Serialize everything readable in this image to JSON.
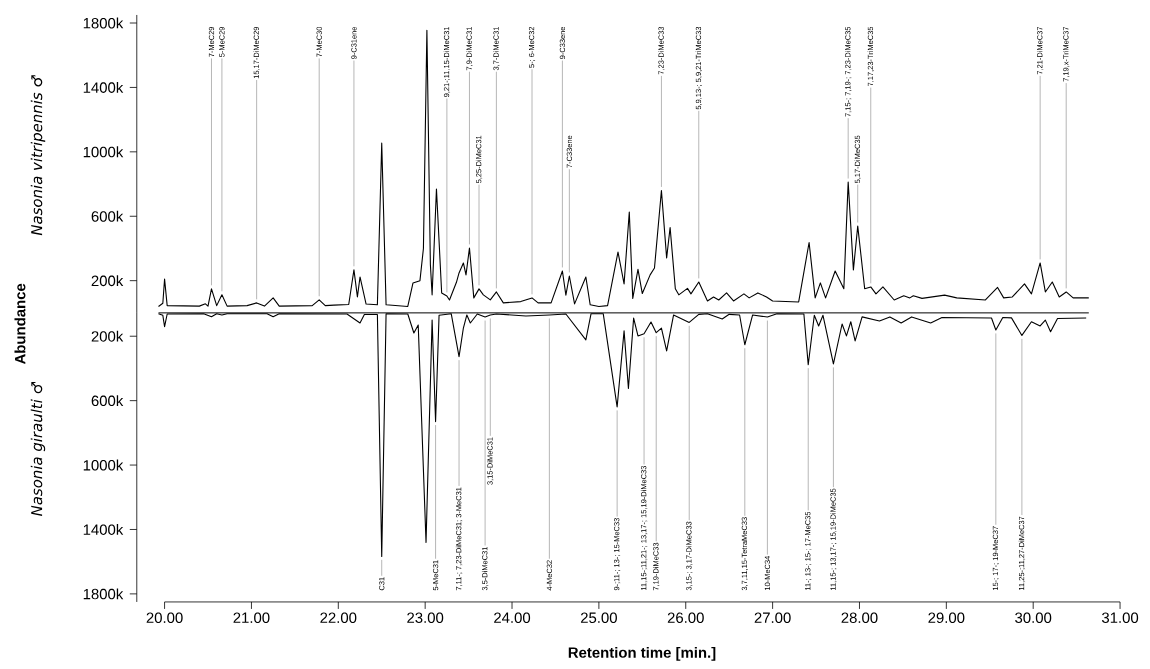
{
  "chart_data": [
    {
      "type": "line",
      "ylabel": "Abundance",
      "tick_labels": "y",
      "x": [
        19.93,
        19.98,
        20.0,
        20.03,
        20.4,
        20.47,
        20.5,
        20.54,
        20.6,
        20.66,
        20.72,
        20.95,
        21.06,
        21.15,
        21.25,
        21.32,
        21.7,
        21.78,
        21.85,
        21.95,
        22.12,
        22.18,
        22.22,
        22.25,
        22.32,
        22.45,
        22.5,
        22.55,
        22.8,
        22.86,
        22.94,
        22.98,
        23.02,
        23.06,
        23.08,
        23.13,
        23.19,
        23.25,
        23.28,
        23.36,
        23.39,
        23.44,
        23.47,
        23.51,
        23.56,
        23.62,
        23.67,
        23.75,
        23.82,
        23.9,
        24.1,
        24.23,
        24.3,
        24.45,
        24.58,
        24.62,
        24.66,
        24.72,
        24.85,
        24.9,
        25.0,
        25.1,
        25.22,
        25.29,
        25.35,
        25.39,
        25.45,
        25.5,
        25.59,
        25.64,
        25.72,
        25.78,
        25.82,
        25.88,
        25.92,
        26.02,
        26.06,
        26.15,
        26.25,
        26.32,
        26.38,
        26.47,
        26.55,
        26.67,
        26.73,
        26.83,
        26.93,
        27.0,
        27.3,
        27.42,
        27.49,
        27.55,
        27.61,
        27.72,
        27.82,
        27.87,
        27.93,
        27.98,
        28.06,
        28.13,
        28.19,
        28.27,
        28.4,
        28.51,
        28.58,
        28.62,
        28.72,
        28.98,
        29.12,
        29.45,
        29.59,
        29.66,
        29.76,
        29.9,
        29.98,
        30.08,
        30.14,
        30.22,
        30.3,
        30.38,
        30.46,
        30.64
      ],
      "series": [
        {
          "name": "*Nasonia vitripennis* ♂",
          "color": "#000000",
          "values": [
            40000,
            60000,
            210000,
            45000,
            42000,
            56000,
            42000,
            149000,
            45000,
            112000,
            42000,
            45000,
            62000,
            42000,
            93000,
            42000,
            45000,
            81000,
            45000,
            48000,
            52000,
            267000,
            99000,
            223000,
            55000,
            50000,
            1054000,
            50000,
            40000,
            186000,
            200000,
            400000,
            1755000,
            300000,
            112000,
            769000,
            124000,
            105000,
            80000,
            190000,
            248000,
            310000,
            236000,
            403000,
            93000,
            149000,
            112000,
            81000,
            130000,
            62000,
            70000,
            93000,
            62000,
            62000,
            260000,
            110000,
            229000,
            56000,
            223000,
            50000,
            40000,
            45000,
            378000,
            180000,
            626000,
            90000,
            270000,
            120000,
            236000,
            279000,
            760000,
            341000,
            530000,
            150000,
            112000,
            152000,
            118000,
            192000,
            74000,
            99000,
            80000,
            124000,
            74000,
            118000,
            93000,
            124000,
            99000,
            74000,
            68000,
            437000,
            93000,
            186000,
            93000,
            260000,
            150000,
            812000,
            267000,
            539000,
            150000,
            161000,
            118000,
            161000,
            80000,
            106000,
            93000,
            106000,
            90000,
            110000,
            93000,
            80000,
            158000,
            93000,
            99000,
            180000,
            118000,
            310000,
            130000,
            192000,
            99000,
            130000,
            93000,
            93000
          ]
        }
      ],
      "xlim": [
        19.68,
        31.0
      ],
      "ylim": [
        0,
        1850000
      ],
      "yticks": [
        {
          "value": 200000,
          "label": "200k"
        },
        {
          "value": 600000,
          "label": "600k"
        },
        {
          "value": 1000000,
          "label": "1000k"
        },
        {
          "value": 1400000,
          "label": "1400k"
        },
        {
          "value": 1800000,
          "label": "1800k"
        }
      ],
      "annotations": [
        {
          "text": "7-MeC29",
          "x": 20.54,
          "y": 149000
        },
        {
          "text": "5-MeC29",
          "x": 20.66,
          "y": 112000
        },
        {
          "text": "15,17-DiMeC29",
          "x": 21.06,
          "y": 62000
        },
        {
          "text": "7-MeC30",
          "x": 21.78,
          "y": 81000
        },
        {
          "text": "9-C31ene",
          "x": 22.18,
          "y": 267000
        },
        {
          "text": "9,21-;11,15-DiMeC31",
          "x": 23.25,
          "y": 105000
        },
        {
          "text": "7,9-DiMeC31",
          "x": 23.51,
          "y": 403000
        },
        {
          "text": "5,25-DiMeC31",
          "x": 23.62,
          "y": 149000
        },
        {
          "text": "3,7-DiMeC31",
          "x": 23.82,
          "y": 130000
        },
        {
          "text": "5-; 6-MeC32",
          "x": 24.23,
          "y": 93000
        },
        {
          "text": "9-C33ene",
          "x": 24.58,
          "y": 260000
        },
        {
          "text": "7-C33ene",
          "x": 24.66,
          "y": 229000
        },
        {
          "text": "7,23-DiMeC33",
          "x": 25.72,
          "y": 760000
        },
        {
          "text": "5,9,13-; 5,9,21-TriMeC33",
          "x": 26.15,
          "y": 192000
        },
        {
          "text": "7,15-; 7,19-; 7,23-DiMeC35",
          "x": 27.87,
          "y": 812000
        },
        {
          "text": "5,17-DiMeC35",
          "x": 27.98,
          "y": 539000
        },
        {
          "text": "7,17,23-TriMeC35",
          "x": 28.13,
          "y": 161000
        },
        {
          "text": "7,21-DiMeC37",
          "x": 30.08,
          "y": 310000
        },
        {
          "text": "7,19,x-TriMeC37",
          "x": 30.38,
          "y": 130000
        }
      ]
    },
    {
      "type": "line",
      "xlabel": "Retention time [min.]",
      "x": [
        19.93,
        19.98,
        20.0,
        20.03,
        20.45,
        20.54,
        20.6,
        20.66,
        20.72,
        21.18,
        21.25,
        21.32,
        22.1,
        22.25,
        22.3,
        22.45,
        22.5,
        22.55,
        22.8,
        22.87,
        22.92,
        23.01,
        23.08,
        23.12,
        23.16,
        23.3,
        23.39,
        23.44,
        23.48,
        23.52,
        23.6,
        23.69,
        23.75,
        23.82,
        24.16,
        24.43,
        24.62,
        24.85,
        24.91,
        25.05,
        25.21,
        25.29,
        25.34,
        25.4,
        25.45,
        25.52,
        25.6,
        25.66,
        25.72,
        25.78,
        25.86,
        26.04,
        26.15,
        26.25,
        26.42,
        26.5,
        26.62,
        26.68,
        26.77,
        26.94,
        27.05,
        27.36,
        27.41,
        27.48,
        27.53,
        27.58,
        27.7,
        27.8,
        27.85,
        27.9,
        27.95,
        28.03,
        28.23,
        28.35,
        28.48,
        28.6,
        28.82,
        28.95,
        29.52,
        29.57,
        29.65,
        29.75,
        29.87,
        29.98,
        30.08,
        30.14,
        30.2,
        30.28,
        30.61
      ],
      "series": [
        {
          "name": "*Nasonia giraulti* ♂",
          "color": "#000000",
          "values": [
            60000,
            70000,
            141000,
            62000,
            60000,
            79000,
            60000,
            68000,
            60000,
            60000,
            79000,
            60000,
            62000,
            118000,
            65000,
            65000,
            1567000,
            60000,
            62000,
            180000,
            130000,
            1480000,
            99000,
            730000,
            70000,
            60000,
            327000,
            149000,
            68000,
            118000,
            62000,
            81000,
            68000,
            62000,
            74000,
            68000,
            62000,
            223000,
            60000,
            60000,
            639000,
            167000,
            525000,
            87000,
            198000,
            185000,
            112000,
            178000,
            150000,
            291000,
            68000,
            114000,
            64000,
            60000,
            93000,
            64000,
            68000,
            253000,
            68000,
            81000,
            60000,
            62000,
            377000,
            70000,
            136000,
            70000,
            372000,
            124000,
            198000,
            110000,
            229000,
            80000,
            105000,
            80000,
            118000,
            80000,
            118000,
            84000,
            87000,
            161000,
            84000,
            86000,
            195000,
            110000,
            136000,
            100000,
            172000,
            90000,
            87000
          ]
        }
      ],
      "xlim": [
        19.68,
        31.0
      ],
      "ylim": [
        1850000,
        55000
      ],
      "xticks": [
        {
          "value": 20,
          "label": "20.00"
        },
        {
          "value": 21,
          "label": "21.00"
        },
        {
          "value": 22,
          "label": "22.00"
        },
        {
          "value": 23,
          "label": "23.00"
        },
        {
          "value": 24,
          "label": "24.00"
        },
        {
          "value": 25,
          "label": "25.00"
        },
        {
          "value": 26,
          "label": "26.00"
        },
        {
          "value": 27,
          "label": "27.00"
        },
        {
          "value": 28,
          "label": "28.00"
        },
        {
          "value": 29,
          "label": "29.00"
        },
        {
          "value": 30,
          "label": "30.00"
        },
        {
          "value": 31,
          "label": "31.00"
        }
      ],
      "yticks": [
        {
          "value": 200000,
          "label": "200k"
        },
        {
          "value": 600000,
          "label": "600k"
        },
        {
          "value": 1000000,
          "label": "1000k"
        },
        {
          "value": 1400000,
          "label": "1400k"
        },
        {
          "value": 1800000,
          "label": "1800k"
        }
      ],
      "annotations": [
        {
          "text": "C31",
          "x": 22.5,
          "y": 1567000
        },
        {
          "text": "5-MeC31",
          "x": 23.12,
          "y": 730000
        },
        {
          "text": "7,11-; 7,23-DiMeC31; 3-MeC31",
          "x": 23.39,
          "y": 327000
        },
        {
          "text": "3,5-DiMeC31",
          "x": 23.69,
          "y": 81000
        },
        {
          "text": "3,15-DiMeC31",
          "x": 23.75,
          "y": 68000
        },
        {
          "text": "4-MeC32",
          "x": 24.43,
          "y": 68000
        },
        {
          "text": "9-;11-; 13-; 15-MeC33",
          "x": 25.21,
          "y": 639000
        },
        {
          "text": "11,15-;11,21-; 13,17-; 15,19-DiMeC33",
          "x": 25.52,
          "y": 185000
        },
        {
          "text": "7,19-DiMeC33",
          "x": 25.66,
          "y": 178000
        },
        {
          "text": "3,15-; 3,17-DiMeC33",
          "x": 26.04,
          "y": 114000
        },
        {
          "text": "3,7,11,15-TetraMeC33",
          "x": 26.68,
          "y": 253000
        },
        {
          "text": "10-MeC34",
          "x": 26.94,
          "y": 81000
        },
        {
          "text": "11-; 13-; 15-; 17-MeC35",
          "x": 27.41,
          "y": 377000
        },
        {
          "text": "11,15-; 13,17-; 15,19-DiMeC35",
          "x": 27.7,
          "y": 372000
        },
        {
          "text": "15-; 17-; 19-MeC37",
          "x": 29.57,
          "y": 161000
        },
        {
          "text": "11,25-;11,27-DiMeC37",
          "x": 29.87,
          "y": 195000
        }
      ]
    }
  ]
}
